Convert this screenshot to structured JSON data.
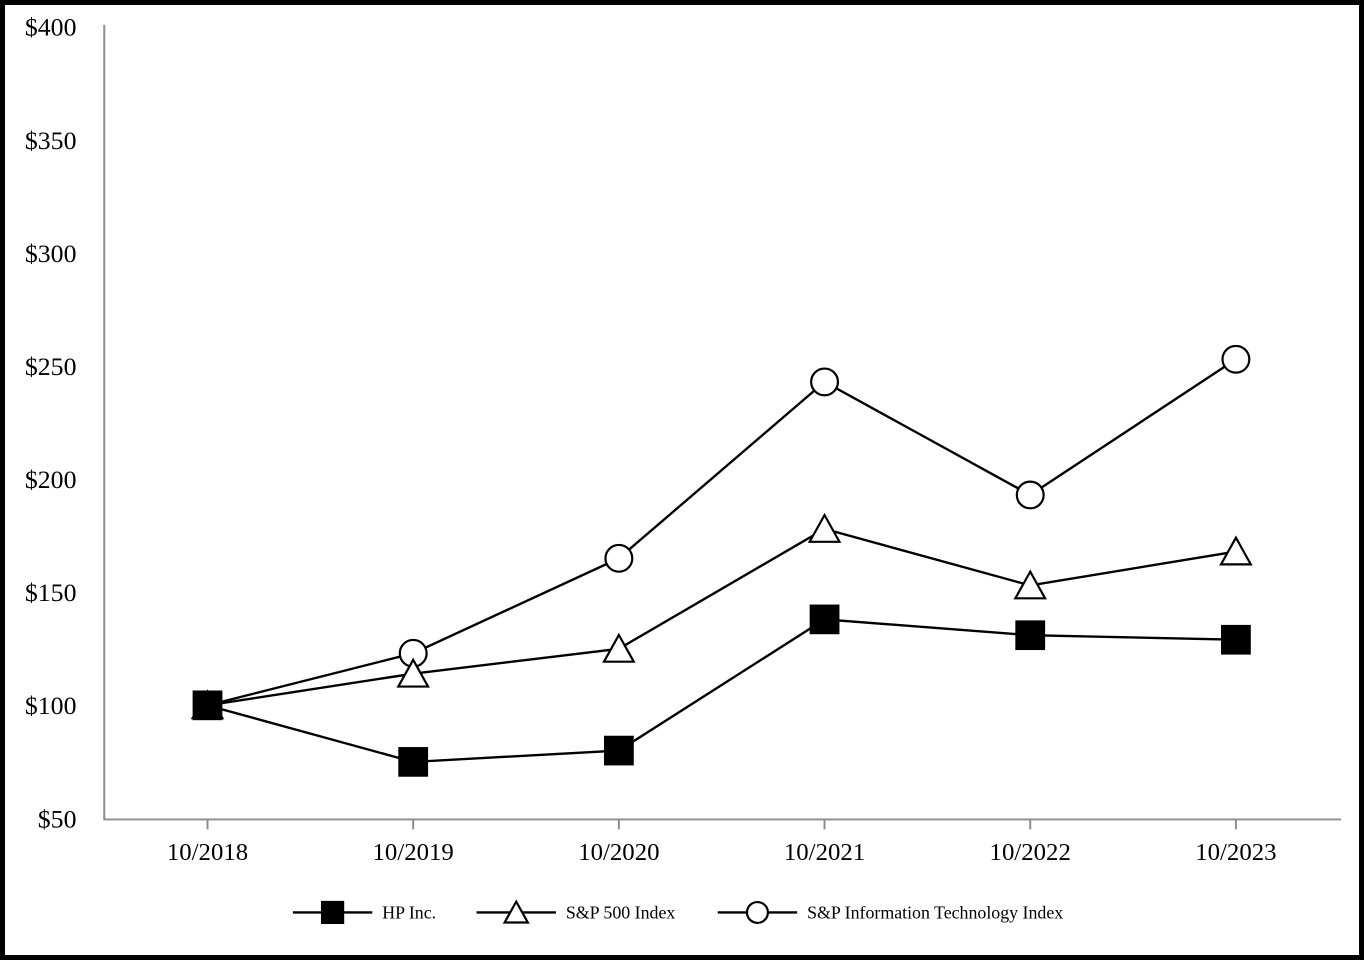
{
  "figure": {
    "background": "#ffffff",
    "frame_color": "#000000"
  },
  "chart_data": {
    "type": "line",
    "title": "",
    "categories": [
      "10/2018",
      "10/2019",
      "10/2020",
      "10/2021",
      "10/2022",
      "10/2023"
    ],
    "series": [
      {
        "name": "HP Inc.",
        "marker": "square",
        "marker_style": "filled-black",
        "values": [
          100,
          75,
          80,
          138,
          131,
          129
        ]
      },
      {
        "name": "S&P 500 Index",
        "marker": "triangle",
        "marker_style": "open-white",
        "values": [
          100,
          114,
          125,
          178,
          153,
          168
        ]
      },
      {
        "name": "S&P Information Technology Index",
        "marker": "circle",
        "marker_style": "open-white",
        "values": [
          100,
          123,
          165,
          243,
          193,
          253
        ]
      }
    ],
    "y_axis": {
      "min": 50,
      "max": 400,
      "tick_step": 50,
      "tick_labels_top_to_bottom": [
        "$400",
        "$350",
        "$300",
        "$250",
        "$200",
        "$150",
        "$100",
        "$50"
      ],
      "unit_prefix": "$"
    },
    "x_axis": {
      "tick_labels": [
        "10/2018",
        "10/2019",
        "10/2020",
        "10/2021",
        "10/2022",
        "10/2023"
      ]
    },
    "legend": {
      "position": "bottom-center",
      "entries": [
        "HP Inc.",
        "S&P 500 Index",
        "S&P Information Technology Index"
      ]
    },
    "grid": false,
    "line_color": "#000000",
    "axis_color": "#8c8c8c"
  }
}
